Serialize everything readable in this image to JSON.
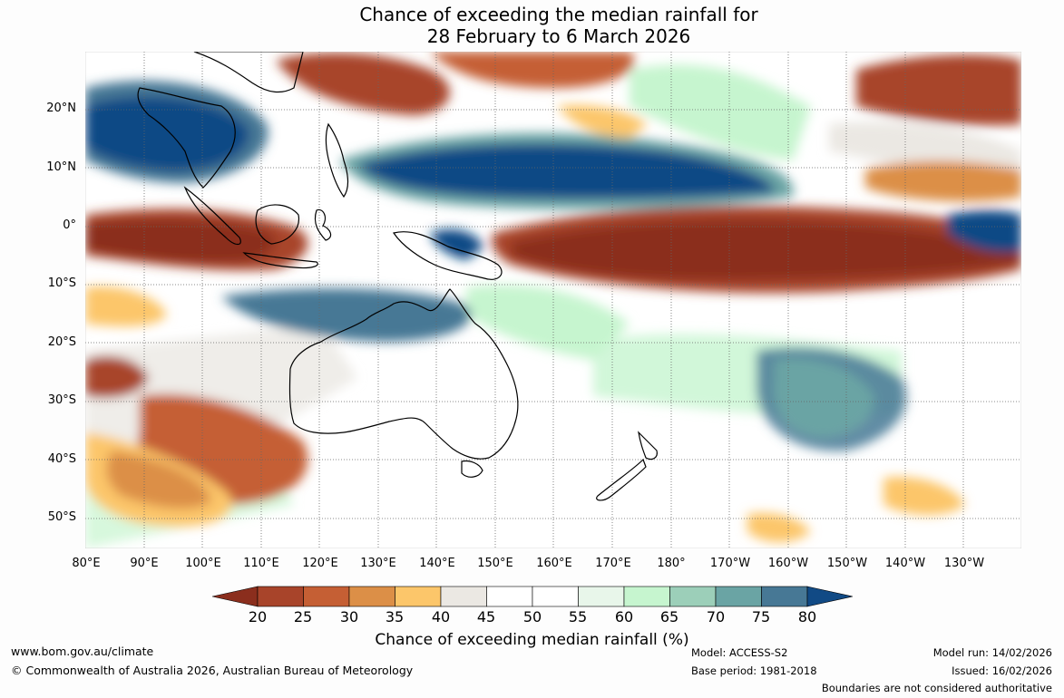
{
  "title": {
    "line1": "Chance of exceeding the median rainfall for",
    "line2": "28 February to 6 March 2026"
  },
  "axes": {
    "lat_labels": [
      "20°N",
      "10°N",
      "0°",
      "10°S",
      "20°S",
      "30°S",
      "40°S",
      "50°S"
    ],
    "lon_labels": [
      "80°E",
      "90°E",
      "100°E",
      "110°E",
      "120°E",
      "130°E",
      "140°E",
      "150°E",
      "160°E",
      "170°E",
      "180°",
      "170°W",
      "160°W",
      "150°W",
      "140°W",
      "130°W"
    ]
  },
  "colorbar": {
    "ticks": [
      "20",
      "25",
      "30",
      "35",
      "40",
      "45",
      "50",
      "55",
      "60",
      "65",
      "70",
      "75",
      "80"
    ],
    "colors": [
      "#8b2e1d",
      "#a8442a",
      "#c55f34",
      "#dc8f47",
      "#fcc66a",
      "#ebe8e3",
      "#ffffff",
      "#ffffff",
      "#e8f6ea",
      "#c6f5cf",
      "#9ccfb9",
      "#6aa4a4",
      "#477895",
      "#114a85"
    ],
    "title": "Chance of exceeding median rainfall (%)"
  },
  "footer": {
    "website": "www.bom.gov.au/climate",
    "copyright": "© Commonwealth of Australia 2026, Australian Bureau of Meteorology",
    "model": "Model: ACCESS-S2",
    "base_period": "Base period: 1981-2018",
    "model_run": "Model run: 14/02/2026",
    "issued": "Issued: 16/02/2026",
    "disclaimer": "Boundaries are not considered authoritative"
  }
}
